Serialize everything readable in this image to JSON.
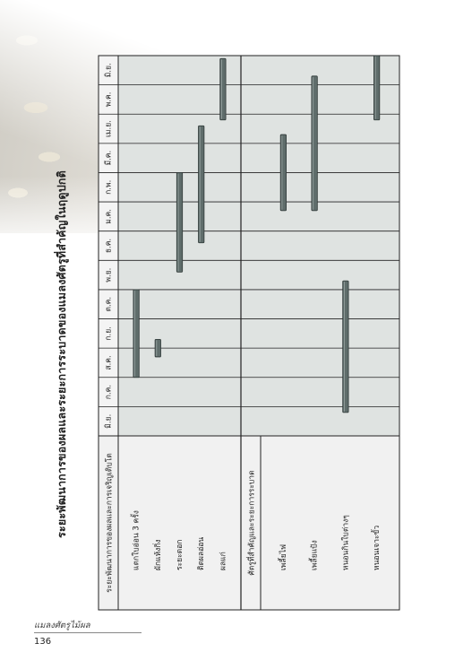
{
  "title": "ระยะพัฒนาการของผลและระยะการระบาดของแมลงศัตรูที่สำคัญในฤดูปกติ",
  "months": [
    "มิ.ย.",
    "ก.ค.",
    "ส.ค.",
    "ก.ย.",
    "ต.ค.",
    "พ.ย.",
    "ธ.ค.",
    "ม.ค.",
    "ก.พ.",
    "มี.ค.",
    "เม.ย.",
    "พ.ค.",
    "มิ.ย."
  ],
  "sections": [
    {
      "heading": "ระยะพัฒนาการของผลและการเจริญเติบโต",
      "rows": [
        {
          "label": "แตกใบอ่อน 3 ครั้ง",
          "start": 2.0,
          "end": 5.0
        },
        {
          "label": "ผักแห้งกิ่ง",
          "start": 2.7,
          "end": 3.3
        },
        {
          "label": "ระยะดอก",
          "start": 5.6,
          "end": 9.0
        },
        {
          "label": "ติดผลอ่อน",
          "start": 6.6,
          "end": 10.6
        },
        {
          "label": "ผลแก่",
          "start": 10.8,
          "end": 12.9
        }
      ]
    },
    {
      "heading": "ศัตรูที่สำคัญและระยะการระบาด",
      "rows": [
        {
          "label": "เพลี้ยไฟ",
          "start": 7.7,
          "end": 10.3
        },
        {
          "label": "เพลี้ยแป้ง",
          "start": 7.7,
          "end": 12.3
        },
        {
          "label": "หนอนกินใบต่างๆ",
          "start": 0.8,
          "end": 5.3
        },
        {
          "label": "หนอนเจาะขั้ว",
          "start": 10.8,
          "end": 13.0
        }
      ]
    }
  ],
  "footer": {
    "label": "แมลงศัตรูไม้ผล",
    "page_number": "136"
  },
  "colors": {
    "grid_fill": "#dfe3e1",
    "label_fill": "#f1f1f1",
    "bar": "#5f6d6b"
  }
}
